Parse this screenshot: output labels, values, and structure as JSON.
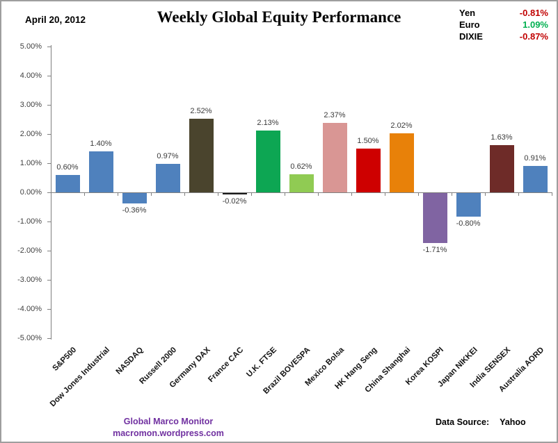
{
  "header": {
    "date": "April 20, 2012",
    "title": "Weekly Global Equity Performance"
  },
  "currency_panel": [
    {
      "label": "Yen",
      "value": "-0.81%",
      "direction": "negative"
    },
    {
      "label": "Euro",
      "value": "1.09%",
      "direction": "positive"
    },
    {
      "label": "DIXIE",
      "value": "-0.87%",
      "direction": "negative"
    }
  ],
  "colors": {
    "positive_value": "#00B050",
    "negative_value": "#C00000",
    "brand_purple": "#7030A0",
    "axis_gray": "#7f7f7f"
  },
  "chart_data": {
    "type": "bar",
    "title": "Weekly Global Equity Performance",
    "xlabel": "",
    "ylabel": "",
    "ylim": [
      -5,
      5
    ],
    "ytick_step": 1,
    "ytick_labels": [
      "5.00%",
      "4.00%",
      "3.00%",
      "2.00%",
      "1.00%",
      "0.00%",
      "-1.00%",
      "-2.00%",
      "-3.00%",
      "-4.00%",
      "-5.00%"
    ],
    "grid": false,
    "legend": "none",
    "categories": [
      "S&P500",
      "Dow Jones Industrial",
      "NASDAQ",
      "Russell 2000",
      "Germany DAX",
      "France CAC",
      "U.K. FTSE",
      "Brazil BOVESPA",
      "Mexico Bolsa",
      "HK Hang Seng",
      "China Shanghai",
      "Korea KOSPI",
      "Japan NIKKEI",
      "India SENSEX",
      "Australia AORD"
    ],
    "values": [
      0.6,
      1.4,
      -0.36,
      0.97,
      2.52,
      -0.02,
      2.13,
      0.62,
      2.37,
      1.5,
      2.02,
      -1.71,
      -0.8,
      1.63,
      0.91
    ],
    "value_labels": [
      "0.60%",
      "1.40%",
      "-0.36%",
      "0.97%",
      "2.52%",
      "-0.02%",
      "2.13%",
      "0.62%",
      "2.37%",
      "1.50%",
      "2.02%",
      "-1.71%",
      "-0.80%",
      "1.63%",
      "0.91%"
    ],
    "bar_colors": [
      "#4F81BD",
      "#4F81BD",
      "#4F81BD",
      "#4F81BD",
      "#4A442D",
      "#1A1A1A",
      "#0DA653",
      "#90CB53",
      "#D99694",
      "#CE0000",
      "#E88109",
      "#8064A2",
      "#4F81BD",
      "#6E2B28",
      "#4F81BD"
    ]
  },
  "footer": {
    "brand_line1": "Global Marco Monitor",
    "brand_line2": "macromon.wordpress.com",
    "source_label": "Data Source:",
    "source_value": "Yahoo"
  }
}
